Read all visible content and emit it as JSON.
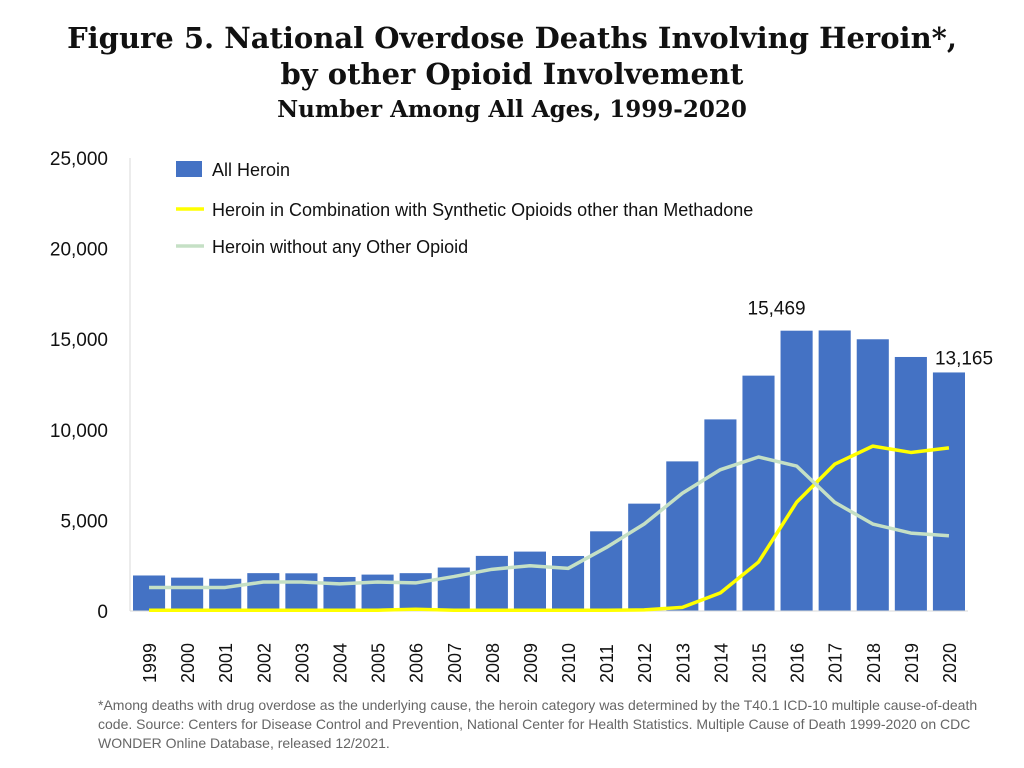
{
  "chart_data": {
    "type": "bar",
    "title": "Figure 5. National Overdose Deaths Involving Heroin*, by other Opioid Involvement",
    "subtitle": "Number Among All Ages, 1999-2020",
    "xlabel": "",
    "ylabel": "",
    "ylim": [
      0,
      25000
    ],
    "yticks": [
      "0",
      "5,000",
      "10,000",
      "15,000",
      "20,000",
      "25,000"
    ],
    "grid": false,
    "legend_position": "top-left",
    "categories": [
      "1999",
      "2000",
      "2001",
      "2002",
      "2003",
      "2004",
      "2005",
      "2006",
      "2007",
      "2008",
      "2009",
      "2010",
      "2011",
      "2012",
      "2013",
      "2014",
      "2015",
      "2016",
      "2017",
      "2018",
      "2019",
      "2020"
    ],
    "series": [
      {
        "name": "All Heroin",
        "type": "bar",
        "color": "#4472C4",
        "values": [
          1960,
          1842,
          1779,
          2089,
          2080,
          1878,
          2009,
          2088,
          2399,
          3041,
          3278,
          3036,
          4397,
          5925,
          8257,
          10574,
          12989,
          15469,
          15482,
          14996,
          14019,
          13165
        ]
      },
      {
        "name": "Heroin in Combination with Synthetic Opioids other than Methadone",
        "type": "line",
        "color": "#FFFF00",
        "values": [
          40,
          40,
          40,
          40,
          40,
          40,
          40,
          100,
          40,
          40,
          40,
          40,
          40,
          60,
          200,
          1000,
          2700,
          6000,
          8100,
          9100,
          8750,
          9000
        ]
      },
      {
        "name": "Heroin without any Other Opioid",
        "type": "line",
        "color": "#C5E0C5",
        "values": [
          1300,
          1300,
          1300,
          1600,
          1600,
          1500,
          1600,
          1550,
          1900,
          2300,
          2500,
          2350,
          3500,
          4800,
          6500,
          7800,
          8500,
          8000,
          6000,
          4800,
          4300,
          4150
        ]
      }
    ],
    "annotations": [
      {
        "category": "2016",
        "text": "15,469"
      },
      {
        "category": "2020",
        "text": "13,165"
      }
    ]
  },
  "footnote": "*Among deaths with drug overdose as the underlying cause, the heroin category was determined by the T40.1 ICD-10 multiple cause-of-death code. Source: Centers for Disease Control and Prevention, National Center for Health Statistics. Multiple Cause of Death 1999-2020 on CDC WONDER Online Database, released 12/2021."
}
